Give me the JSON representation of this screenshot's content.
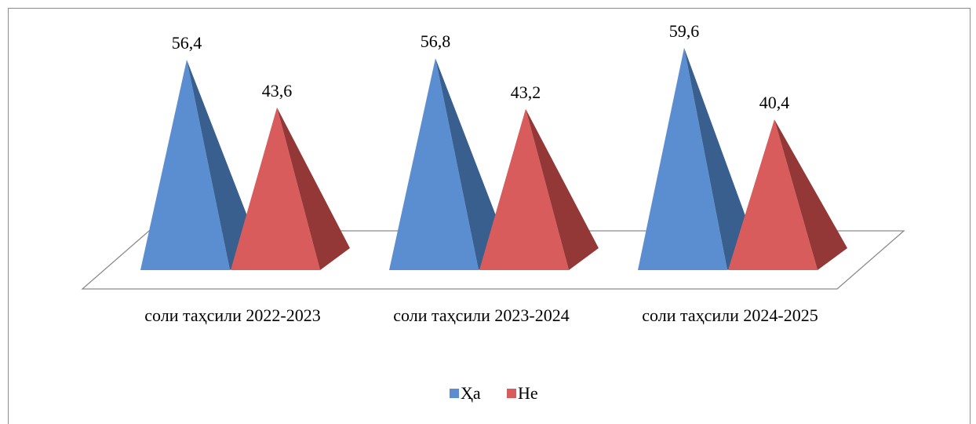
{
  "chart_data": {
    "type": "bar",
    "bar_shape": "pyramid",
    "categories": [
      "соли таҳсили 2022-2023",
      "соли таҳсили 2023-2024",
      "соли таҳсили 2024-2025"
    ],
    "series": [
      {
        "name": "Ҳа",
        "values": [
          56.4,
          56.8,
          59.6
        ],
        "color": "#5b8ed0",
        "color_dark": "#385f8d"
      },
      {
        "name": "Не",
        "values": [
          43.6,
          43.2,
          40.4
        ],
        "color": "#d85c5b",
        "color_dark": "#933737"
      }
    ],
    "data_labels": [
      [
        "56,4",
        "56,8",
        "59,6"
      ],
      [
        "43,6",
        "43,2",
        "40,4"
      ]
    ],
    "title": "",
    "xlabel": "",
    "ylabel": "",
    "ylim": [
      0,
      65
    ],
    "grid": false,
    "legend_position": "bottom"
  }
}
